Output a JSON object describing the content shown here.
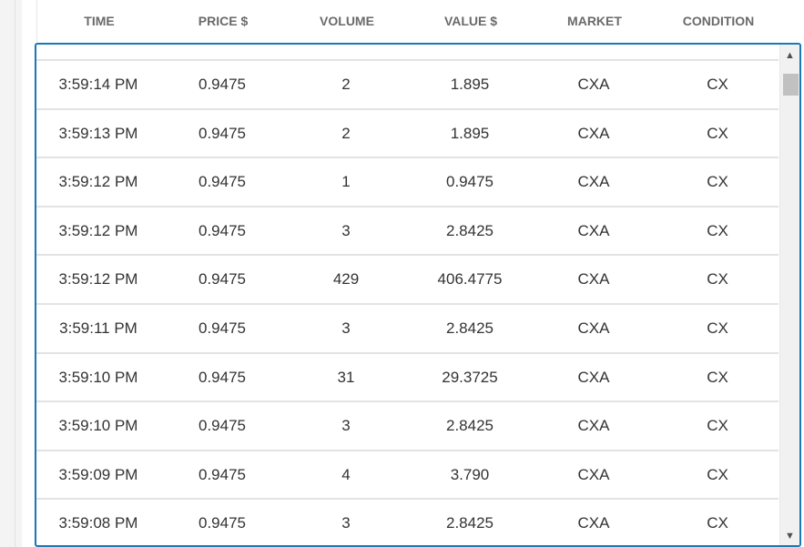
{
  "table": {
    "columns": [
      "TIME",
      "PRICE $",
      "VOLUME",
      "VALUE $",
      "MARKET",
      "CONDITION"
    ],
    "rows": [
      [
        "3:59:14 PM",
        "0.9475",
        "2",
        "1.895",
        "CXA",
        "CX"
      ],
      [
        "3:59:13 PM",
        "0.9475",
        "2",
        "1.895",
        "CXA",
        "CX"
      ],
      [
        "3:59:12 PM",
        "0.9475",
        "1",
        "0.9475",
        "CXA",
        "CX"
      ],
      [
        "3:59:12 PM",
        "0.9475",
        "3",
        "2.8425",
        "CXA",
        "CX"
      ],
      [
        "3:59:12 PM",
        "0.9475",
        "429",
        "406.4775",
        "CXA",
        "CX"
      ],
      [
        "3:59:11 PM",
        "0.9475",
        "3",
        "2.8425",
        "CXA",
        "CX"
      ],
      [
        "3:59:10 PM",
        "0.9475",
        "31",
        "29.3725",
        "CXA",
        "CX"
      ],
      [
        "3:59:10 PM",
        "0.9475",
        "3",
        "2.8425",
        "CXA",
        "CX"
      ],
      [
        "3:59:09 PM",
        "0.9475",
        "4",
        "3.790",
        "CXA",
        "CX"
      ],
      [
        "3:59:08 PM",
        "0.9475",
        "3",
        "2.8425",
        "CXA",
        "CX"
      ]
    ]
  },
  "scrollbar": {
    "up_icon": "triangle-up-icon",
    "down_icon": "triangle-down-icon"
  },
  "colors": {
    "focus_border": "#1b78b6",
    "header_text": "#6a6a6a",
    "cell_text": "#333333"
  }
}
